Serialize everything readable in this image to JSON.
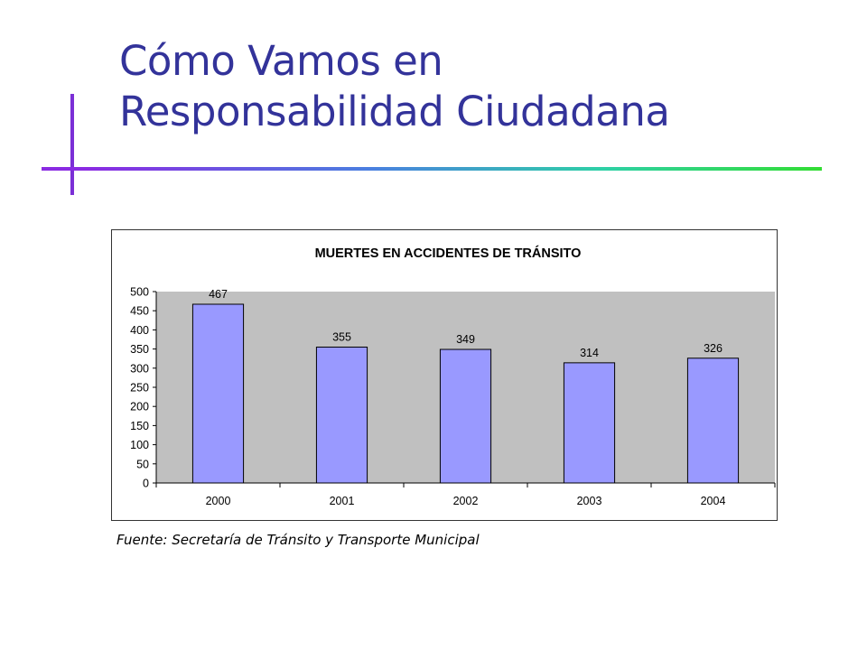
{
  "slide": {
    "title_line1": "Cómo Vamos en",
    "title_line2": "Responsabilidad Ciudadana",
    "source": "Fuente: Secretaría de Tránsito y Transporte Municipal"
  },
  "colors": {
    "title": "#33339a",
    "plot_background": "#c0c0c0",
    "bar_fill": "#9999ff",
    "bar_stroke": "#000000"
  },
  "chart_data": {
    "type": "bar",
    "title": "MUERTES EN ACCIDENTES DE TRÁNSITO",
    "categories": [
      "2000",
      "2001",
      "2002",
      "2003",
      "2004"
    ],
    "values": [
      467,
      355,
      349,
      314,
      326
    ],
    "data_labels": [
      "467",
      "355",
      "349",
      "314",
      "326"
    ],
    "ylim": [
      0,
      500
    ],
    "yticks": [
      0,
      50,
      100,
      150,
      200,
      250,
      300,
      350,
      400,
      450,
      500
    ],
    "xlabel": "",
    "ylabel": "",
    "grid": false,
    "legend": "none"
  }
}
